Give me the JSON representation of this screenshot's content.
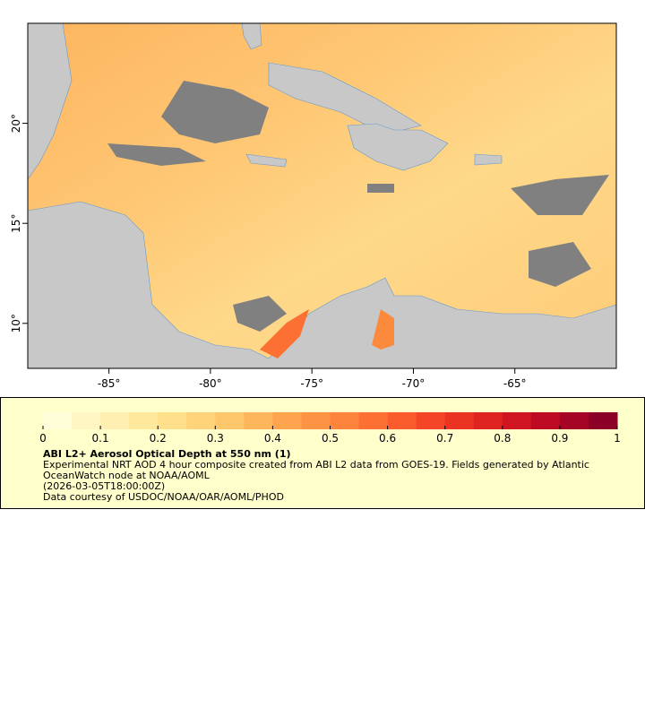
{
  "map": {
    "xlim": [
      -89,
      -60
    ],
    "ylim": [
      7.75,
      25
    ],
    "xticks": [
      {
        "value": -85,
        "label": "-85°"
      },
      {
        "value": -80,
        "label": "-80°"
      },
      {
        "value": -75,
        "label": "-75°"
      },
      {
        "value": -70,
        "label": "-70°"
      },
      {
        "value": -65,
        "label": "-65°"
      }
    ],
    "yticks": [
      {
        "value": 10,
        "label": "10°"
      },
      {
        "value": 15,
        "label": "15°"
      },
      {
        "value": 20,
        "label": "20°"
      }
    ]
  },
  "colorbar": {
    "range": [
      0,
      1
    ],
    "ticks": [
      0,
      0.1,
      0.2,
      0.3,
      0.4,
      0.5,
      0.6,
      0.7,
      0.8,
      0.9,
      1
    ],
    "colors": [
      "#fffdd8",
      "#fff6c4",
      "#ffefb0",
      "#fee89c",
      "#fedf8a",
      "#fed37a",
      "#fec66a",
      "#feb65c",
      "#fea44f",
      "#fd9444",
      "#fd843c",
      "#fc7034",
      "#fb5c2d",
      "#f44528",
      "#ea3323",
      "#de2320",
      "#cf1521",
      "#bd0b24",
      "#a50426",
      "#8b0026"
    ]
  },
  "legend": {
    "title": "ABI L2+ Aerosol Optical Depth at 550 nm (1)",
    "description": "Experimental NRT AOD 4 hour composite created from ABI L2 data from GOES-19. Fields generated by Atlantic OceanWatch node at NOAA/AOML",
    "date": "(2026-03-05T18:00:00Z)",
    "credit": "Data courtesy of USDOC/NOAA/OAR/AOML/PHOD"
  }
}
